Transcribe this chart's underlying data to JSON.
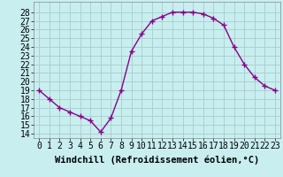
{
  "x": [
    0,
    1,
    2,
    3,
    4,
    5,
    6,
    7,
    8,
    9,
    10,
    11,
    12,
    13,
    14,
    15,
    16,
    17,
    18,
    19,
    20,
    21,
    22,
    23
  ],
  "y": [
    19.0,
    18.0,
    17.0,
    16.5,
    16.0,
    15.5,
    14.2,
    15.8,
    19.0,
    23.5,
    25.5,
    27.0,
    27.5,
    28.0,
    28.0,
    28.0,
    27.8,
    27.3,
    26.5,
    24.0,
    22.0,
    20.5,
    19.5,
    19.0
  ],
  "line_color": "#880088",
  "marker": "+",
  "marker_size": 4,
  "bg_color": "#c8eef0",
  "grid_color": "#aacccc",
  "xlabel": "Windchill (Refroidissement éolien,°C)",
  "ylabel_ticks": [
    14,
    15,
    16,
    17,
    18,
    19,
    20,
    21,
    22,
    23,
    24,
    25,
    26,
    27,
    28
  ],
  "ylim": [
    13.5,
    29.2
  ],
  "xlim": [
    -0.5,
    23.5
  ],
  "xlabel_fontsize": 7.5,
  "tick_fontsize": 7,
  "line_width": 1.0
}
